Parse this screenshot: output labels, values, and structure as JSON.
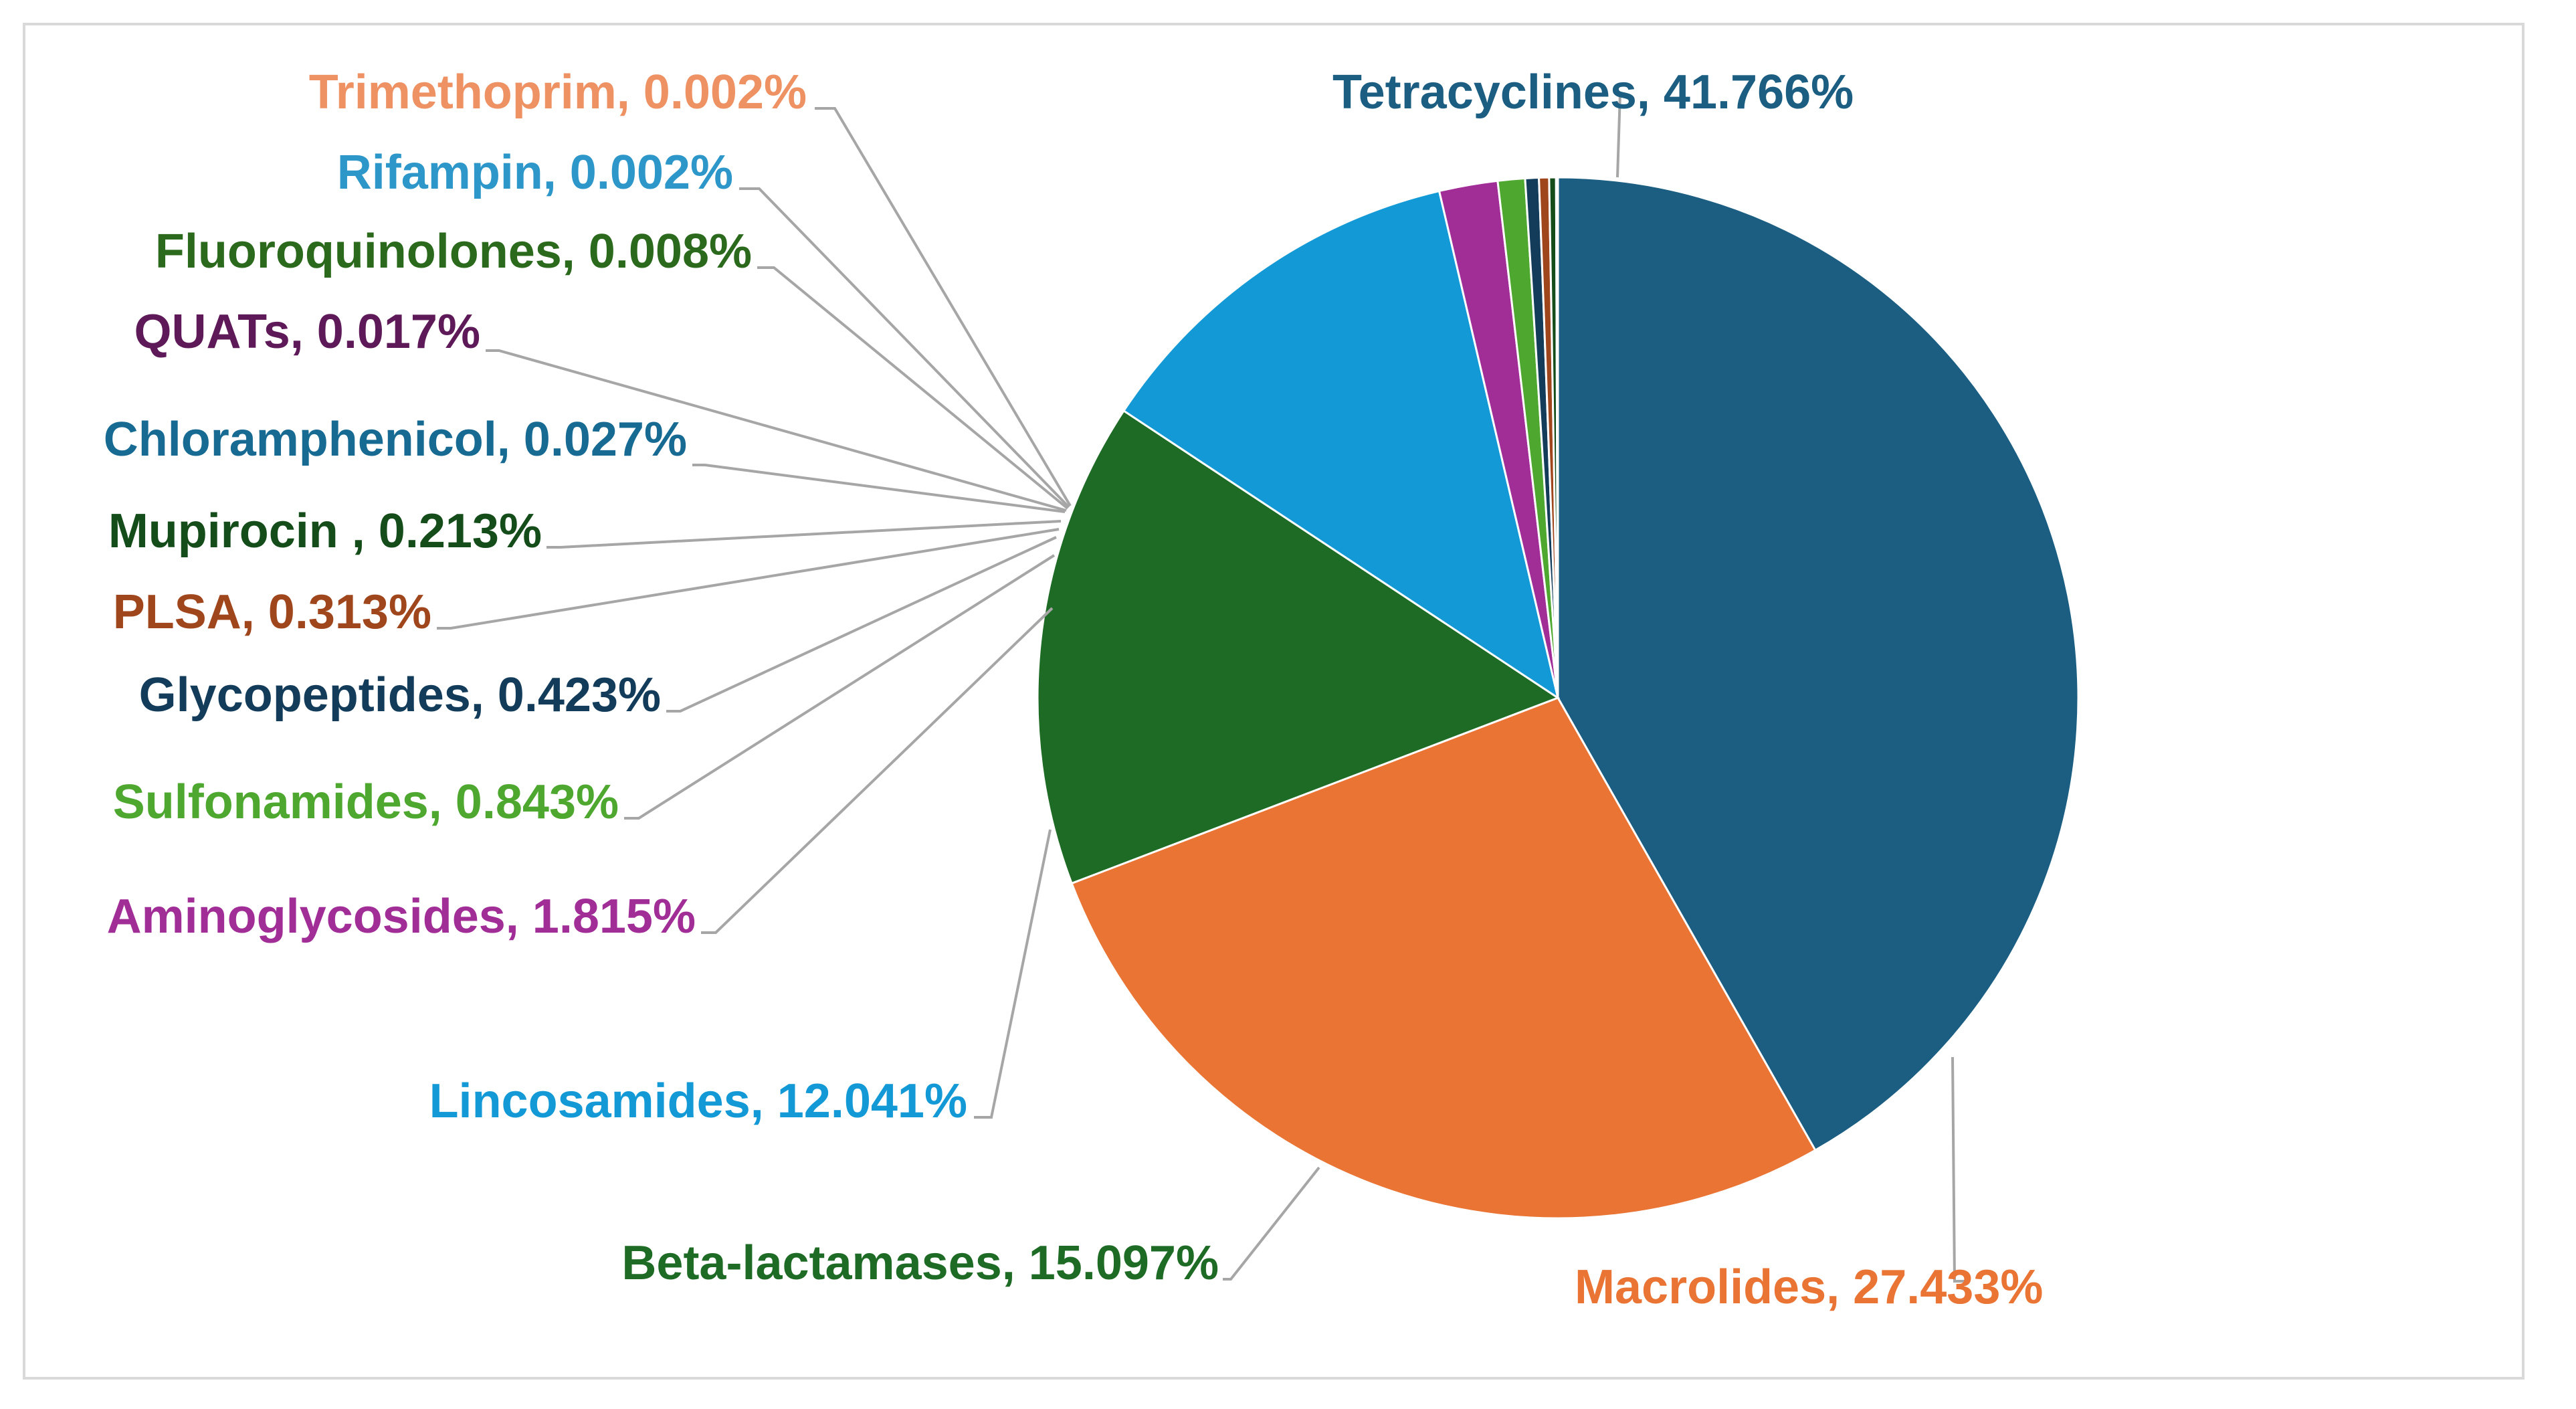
{
  "chart_data": {
    "type": "pie",
    "title": "",
    "slices": [
      {
        "label": "Tetracyclines",
        "value": 41.766,
        "display": "41.766%",
        "color": "#1b5e82"
      },
      {
        "label": "Macrolides",
        "value": 27.433,
        "display": "27.433%",
        "color": "#e97434"
      },
      {
        "label": "Beta-lactamases",
        "value": 15.097,
        "display": "15.097%",
        "color": "#1e6b25"
      },
      {
        "label": "Lincosamides",
        "value": 12.041,
        "display": "12.041%",
        "color": "#139ad6"
      },
      {
        "label": "Aminoglycosides",
        "value": 1.815,
        "display": "1.815%",
        "color": "#a12d96"
      },
      {
        "label": "Sulfonamides",
        "value": 0.843,
        "display": "0.843%",
        "color": "#4ea72e"
      },
      {
        "label": "Glycopeptides",
        "value": 0.423,
        "display": "0.423%",
        "color": "#123c5a"
      },
      {
        "label": "PLSA",
        "value": 0.313,
        "display": "0.313%",
        "color": "#a0461d"
      },
      {
        "label": "Mupirocin ",
        "value": 0.213,
        "display": "0.213%",
        "color": "#154d1a"
      },
      {
        "label": "Chloramphenicol",
        "value": 0.027,
        "display": "0.027%",
        "color": "#176b93"
      },
      {
        "label": "QUATs",
        "value": 0.017,
        "display": "0.017%",
        "color": "#5e1a58"
      },
      {
        "label": "Fluoroquinolones",
        "value": 0.008,
        "display": "0.008%",
        "color": "#2b6a1c"
      },
      {
        "label": "Rifampin",
        "value": 0.002,
        "display": "0.002%",
        "color": "#2d97c9"
      },
      {
        "label": "Trimethoprim",
        "value": 0.002,
        "display": "0.002%",
        "color": "#ee9163"
      }
    ],
    "start_angle_deg": 0,
    "direction": "clockwise",
    "legend": "none",
    "leader_line_color": "#a6a6a6"
  }
}
